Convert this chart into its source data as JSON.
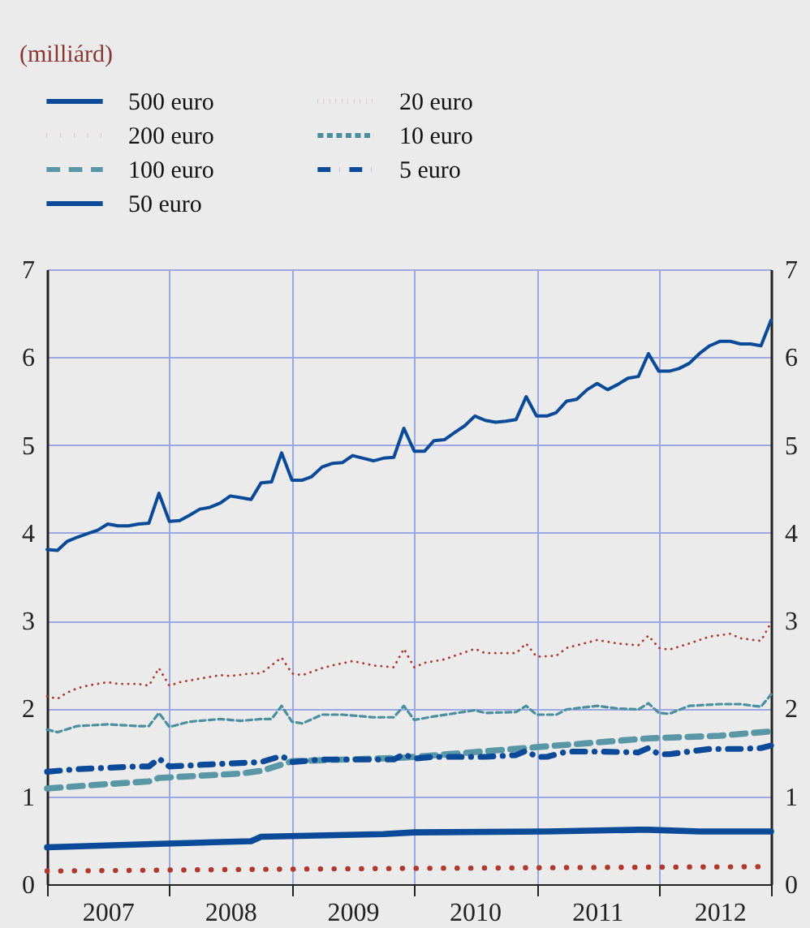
{
  "chart_data": {
    "type": "line",
    "subtitle": "(milliárd)",
    "x": [
      "2007-01",
      "2007-02",
      "2007-03",
      "2007-04",
      "2007-05",
      "2007-06",
      "2007-07",
      "2007-08",
      "2007-09",
      "2007-10",
      "2007-11",
      "2007-12",
      "2008-01",
      "2008-02",
      "2008-03",
      "2008-04",
      "2008-05",
      "2008-06",
      "2008-07",
      "2008-08",
      "2008-09",
      "2008-10",
      "2008-11",
      "2008-12",
      "2009-01",
      "2009-02",
      "2009-03",
      "2009-04",
      "2009-05",
      "2009-06",
      "2009-07",
      "2009-08",
      "2009-09",
      "2009-10",
      "2009-11",
      "2009-12",
      "2010-01",
      "2010-02",
      "2010-03",
      "2010-04",
      "2010-05",
      "2010-06",
      "2010-07",
      "2010-08",
      "2010-09",
      "2010-10",
      "2010-11",
      "2010-12",
      "2011-01",
      "2011-02",
      "2011-03",
      "2011-04",
      "2011-05",
      "2011-06",
      "2011-07",
      "2011-08",
      "2011-09",
      "2011-10",
      "2011-11",
      "2011-12",
      "2012-01",
      "2012-02",
      "2012-03",
      "2012-04",
      "2012-05",
      "2012-06",
      "2012-07",
      "2012-08",
      "2012-09",
      "2012-10",
      "2012-11",
      "2012-12"
    ],
    "series": [
      {
        "name": "500 euro",
        "color": "#0b4a98",
        "line_style": "solid",
        "x": [
          "2007-01",
          "2007-12",
          "2008-09",
          "2008-10",
          "2009-10",
          "2010-01",
          "2011-02",
          "2011-11",
          "2011-12",
          "2012-05",
          "2012-12"
        ],
        "values": [
          0.42,
          0.46,
          0.49,
          0.54,
          0.57,
          0.59,
          0.6,
          0.62,
          0.62,
          0.6,
          0.6
        ]
      },
      {
        "name": "200 euro",
        "color": "#b0392e",
        "line_style": "dotted",
        "x": [
          "2007-01",
          "2008-11",
          "2009-12",
          "2012-12"
        ],
        "values": [
          0.15,
          0.17,
          0.18,
          0.2
        ]
      },
      {
        "name": "100 euro",
        "color": "#5a97a6",
        "line_style": "dashed",
        "x": [
          "2007-01",
          "2007-07",
          "2007-11",
          "2007-12",
          "2008-08",
          "2008-10",
          "2009-01",
          "2009-12",
          "2011-01",
          "2011-12",
          "2012-07",
          "2012-12"
        ],
        "values": [
          1.09,
          1.14,
          1.17,
          1.21,
          1.26,
          1.29,
          1.4,
          1.44,
          1.56,
          1.66,
          1.69,
          1.74
        ]
      },
      {
        "name": "50 euro",
        "color": "#0b4a98",
        "line_style": "solid",
        "values": [
          3.81,
          3.8,
          3.9,
          3.95,
          3.99,
          4.03,
          4.1,
          4.08,
          4.08,
          4.1,
          4.11,
          4.45,
          4.13,
          4.14,
          4.2,
          4.27,
          4.29,
          4.34,
          4.42,
          4.4,
          4.38,
          4.57,
          4.58,
          4.91,
          4.6,
          4.6,
          4.64,
          4.75,
          4.79,
          4.8,
          4.88,
          4.85,
          4.82,
          4.85,
          4.86,
          5.19,
          4.93,
          4.93,
          5.05,
          5.06,
          5.14,
          5.22,
          5.33,
          5.28,
          5.26,
          5.27,
          5.29,
          5.55,
          5.33,
          5.33,
          5.37,
          5.5,
          5.52,
          5.63,
          5.7,
          5.63,
          5.69,
          5.76,
          5.78,
          6.04,
          5.84,
          5.84,
          5.87,
          5.93,
          6.04,
          6.13,
          6.18,
          6.18,
          6.15,
          6.15,
          6.13,
          6.42
        ]
      },
      {
        "name": "20 euro",
        "color": "#b0392e",
        "line_style": "dotted",
        "x": [
          "2007-01",
          "2007-02",
          "2007-03",
          "2007-04",
          "2007-05",
          "2007-07",
          "2007-08",
          "2007-10",
          "2007-11",
          "2007-12",
          "2008-01",
          "2008-02",
          "2008-04",
          "2008-06",
          "2008-07",
          "2008-09",
          "2008-10",
          "2008-12",
          "2009-01",
          "2009-02",
          "2009-04",
          "2009-05",
          "2009-07",
          "2009-09",
          "2009-11",
          "2009-12",
          "2010-01",
          "2010-02",
          "2010-04",
          "2010-07",
          "2010-08",
          "2010-11",
          "2010-12",
          "2011-01",
          "2011-03",
          "2011-04",
          "2011-07",
          "2011-09",
          "2011-11",
          "2011-12",
          "2012-01",
          "2012-02",
          "2012-04",
          "2012-06",
          "2012-08",
          "2012-09",
          "2012-11",
          "2012-12"
        ],
        "values": [
          2.14,
          2.11,
          2.18,
          2.23,
          2.26,
          2.3,
          2.28,
          2.28,
          2.26,
          2.46,
          2.26,
          2.3,
          2.34,
          2.38,
          2.37,
          2.4,
          2.4,
          2.58,
          2.4,
          2.38,
          2.46,
          2.49,
          2.54,
          2.49,
          2.47,
          2.68,
          2.47,
          2.52,
          2.56,
          2.68,
          2.63,
          2.63,
          2.74,
          2.59,
          2.6,
          2.69,
          2.78,
          2.74,
          2.72,
          2.83,
          2.69,
          2.67,
          2.74,
          2.82,
          2.85,
          2.8,
          2.77,
          2.98
        ]
      },
      {
        "name": "10 euro",
        "color": "#4a8ea0",
        "line_style": "dashed",
        "x": [
          "2007-01",
          "2007-02",
          "2007-04",
          "2007-07",
          "2007-10",
          "2007-11",
          "2007-12",
          "2008-01",
          "2008-03",
          "2008-06",
          "2008-08",
          "2008-10",
          "2008-11",
          "2008-12",
          "2009-01",
          "2009-02",
          "2009-04",
          "2009-06",
          "2009-09",
          "2009-11",
          "2009-12",
          "2010-01",
          "2010-03",
          "2010-07",
          "2010-08",
          "2010-11",
          "2010-12",
          "2011-01",
          "2011-03",
          "2011-04",
          "2011-07",
          "2011-09",
          "2011-11",
          "2011-12",
          "2012-01",
          "2012-02",
          "2012-04",
          "2012-07",
          "2012-09",
          "2012-11",
          "2012-12"
        ],
        "values": [
          1.76,
          1.73,
          1.8,
          1.82,
          1.8,
          1.8,
          1.95,
          1.79,
          1.85,
          1.88,
          1.86,
          1.88,
          1.88,
          2.03,
          1.85,
          1.83,
          1.93,
          1.93,
          1.9,
          1.9,
          2.03,
          1.87,
          1.91,
          1.98,
          1.95,
          1.96,
          2.03,
          1.93,
          1.93,
          1.99,
          2.03,
          2.0,
          1.99,
          2.06,
          1.95,
          1.94,
          2.03,
          2.05,
          2.05,
          2.02,
          2.16
        ]
      },
      {
        "name": "5 euro",
        "color": "#0b4a98",
        "line_style": "dashdot",
        "x": [
          "2007-01",
          "2007-04",
          "2007-10",
          "2007-11",
          "2007-12",
          "2008-01",
          "2008-06",
          "2008-10",
          "2008-12",
          "2009-01",
          "2009-04",
          "2009-10",
          "2009-11",
          "2009-12",
          "2010-01",
          "2010-03",
          "2010-08",
          "2010-11",
          "2010-12",
          "2011-01",
          "2011-02",
          "2011-04",
          "2011-07",
          "2011-11",
          "2011-12",
          "2012-01",
          "2012-02",
          "2012-06",
          "2012-09",
          "2012-11",
          "2012-12"
        ],
        "values": [
          1.28,
          1.31,
          1.34,
          1.34,
          1.43,
          1.34,
          1.37,
          1.39,
          1.46,
          1.39,
          1.42,
          1.42,
          1.42,
          1.48,
          1.43,
          1.45,
          1.45,
          1.47,
          1.52,
          1.45,
          1.45,
          1.51,
          1.51,
          1.5,
          1.55,
          1.48,
          1.48,
          1.54,
          1.54,
          1.55,
          1.58
        ]
      }
    ],
    "xlim": [
      "2007-01",
      "2012-12"
    ],
    "xticks": [
      {
        "value": "2007-01",
        "label": null
      },
      {
        "value": "2007-07",
        "label": "2007"
      },
      {
        "value": "2008-01",
        "label": null
      },
      {
        "value": "2008-07",
        "label": "2008"
      },
      {
        "value": "2009-01",
        "label": null
      },
      {
        "value": "2009-07",
        "label": "2009"
      },
      {
        "value": "2010-01",
        "label": null
      },
      {
        "value": "2010-07",
        "label": "2010"
      },
      {
        "value": "2011-01",
        "label": null
      },
      {
        "value": "2011-07",
        "label": "2011"
      },
      {
        "value": "2012-01",
        "label": null
      },
      {
        "value": "2012-07",
        "label": "2012"
      },
      {
        "value": "2012-12",
        "label": null
      }
    ],
    "ylim": [
      0,
      7
    ],
    "yticks": [
      0,
      1,
      2,
      3,
      4,
      5,
      6,
      7
    ],
    "y2lim": [
      0,
      7
    ],
    "y2ticks": [
      0,
      1,
      2,
      3,
      4,
      5,
      6,
      7
    ],
    "grid": true,
    "legend": "top left"
  }
}
